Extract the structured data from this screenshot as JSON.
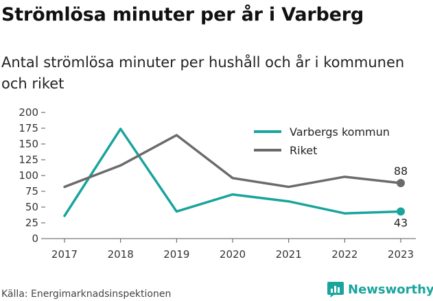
{
  "header": {
    "title": "Strömlösa minuter per år i Varberg",
    "subtitle": "Antal strömlösa minuter per hushåll och år i kommunen och riket"
  },
  "footer": {
    "source": "Källa: Energimarknadsinspektionen",
    "brand": "Newsworthy",
    "brand_icon": "newsworthy-logo-icon"
  },
  "chart_data": {
    "type": "line",
    "x": [
      2017,
      2018,
      2019,
      2020,
      2021,
      2022,
      2023
    ],
    "x_tick_labels": [
      "2017",
      "2018",
      "2019",
      "2020",
      "2021",
      "2022",
      "2023"
    ],
    "ylim": [
      0,
      200
    ],
    "y_ticks": [
      0,
      25,
      50,
      75,
      100,
      125,
      150,
      175,
      200
    ],
    "y_tick_labels": [
      "0",
      "25",
      "50",
      "75",
      "100",
      "125",
      "150",
      "175",
      "200"
    ],
    "grid": false,
    "legend_position": "top-right",
    "series": [
      {
        "name": "Varbergs kommun",
        "color": "#19a49c",
        "values": [
          36,
          174,
          43,
          70,
          59,
          40,
          43
        ],
        "end_label": "43"
      },
      {
        "name": "Riket",
        "color": "#6b6b6b",
        "values": [
          82,
          116,
          164,
          96,
          82,
          98,
          88
        ],
        "end_label": "88"
      }
    ]
  }
}
